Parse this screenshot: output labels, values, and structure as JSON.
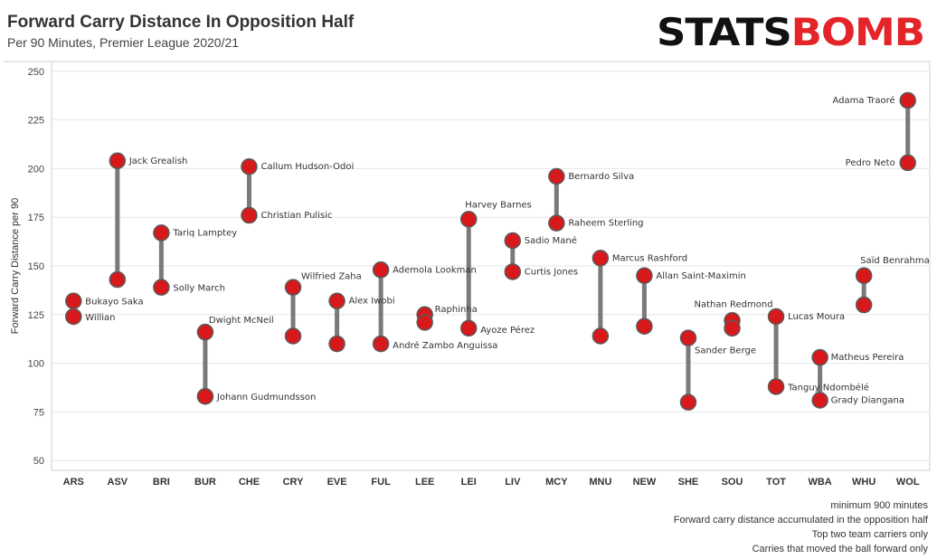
{
  "header": {
    "title": "Forward Carry Distance In Opposition Half",
    "subtitle": "Per 90 Minutes, Premier League 2020/21"
  },
  "logo": {
    "text": "STATSBOMB",
    "part1": "STATS",
    "part2": "B",
    "part3": "MB",
    "color_dark": "#111111",
    "color_red": "#e32428"
  },
  "notes": [
    "minimum 900 minutes",
    "Forward carry distance accumulated in the opposition half",
    "Top two team carriers only",
    "Carries that moved the ball forward only"
  ],
  "colors": {
    "point": "#d7191c",
    "point_stroke": "#5a5a5a",
    "line": "#7a7a7a",
    "grid": "#e6e6e6"
  },
  "chart_data": {
    "type": "dumbbell",
    "ylabel": "Forward Carry Distance per 90",
    "xlabel": "",
    "ylim": [
      45,
      255
    ],
    "yticks": [
      50,
      75,
      100,
      125,
      150,
      175,
      200,
      225,
      250
    ],
    "categories": [
      "ARS",
      "ASV",
      "BRI",
      "BUR",
      "CHE",
      "CRY",
      "EVE",
      "FUL",
      "LEE",
      "LEI",
      "LIV",
      "MCY",
      "MNU",
      "NEW",
      "SHE",
      "SOU",
      "TOT",
      "WBA",
      "WHU",
      "WOL"
    ],
    "teams": [
      {
        "team": "ARS",
        "players": [
          {
            "name": "Bukayo Saka",
            "value": 132
          },
          {
            "name": "Willian",
            "value": 124
          }
        ]
      },
      {
        "team": "ASV",
        "players": [
          {
            "name": "Jack Grealish",
            "value": 204
          },
          {
            "name": "",
            "value": 143
          }
        ]
      },
      {
        "team": "BRI",
        "players": [
          {
            "name": "Tariq Lamptey",
            "value": 167
          },
          {
            "name": "Solly March",
            "value": 139
          }
        ]
      },
      {
        "team": "BUR",
        "players": [
          {
            "name": "Dwight McNeil",
            "value": 116
          },
          {
            "name": "Johann Gudmundsson",
            "value": 83
          }
        ]
      },
      {
        "team": "CHE",
        "players": [
          {
            "name": "Callum Hudson-Odoi",
            "value": 201
          },
          {
            "name": "Christian Pulisic",
            "value": 176
          }
        ]
      },
      {
        "team": "CRY",
        "players": [
          {
            "name": "Wilfried Zaha",
            "value": 139
          },
          {
            "name": "",
            "value": 114
          }
        ]
      },
      {
        "team": "EVE",
        "players": [
          {
            "name": "Alex Iwobi",
            "value": 132
          },
          {
            "name": "",
            "value": 110
          }
        ]
      },
      {
        "team": "FUL",
        "players": [
          {
            "name": "Ademola Lookman",
            "value": 148
          },
          {
            "name": "André Zambo Anguissa",
            "value": 110
          }
        ]
      },
      {
        "team": "LEE",
        "players": [
          {
            "name": "Raphinha",
            "value": 125
          },
          {
            "name": "",
            "value": 121
          }
        ]
      },
      {
        "team": "LEI",
        "players": [
          {
            "name": "Harvey Barnes",
            "value": 174
          },
          {
            "name": "Ayoze Pérez",
            "value": 118
          }
        ]
      },
      {
        "team": "LIV",
        "players": [
          {
            "name": "Sadio Mané",
            "value": 163
          },
          {
            "name": "Curtis Jones",
            "value": 147
          }
        ]
      },
      {
        "team": "MCY",
        "players": [
          {
            "name": "Bernardo Silva",
            "value": 196
          },
          {
            "name": "Raheem Sterling",
            "value": 172
          }
        ]
      },
      {
        "team": "MNU",
        "players": [
          {
            "name": "Marcus Rashford",
            "value": 154
          },
          {
            "name": "",
            "value": 114
          }
        ]
      },
      {
        "team": "NEW",
        "players": [
          {
            "name": "Allan Saint-Maximin",
            "value": 145
          },
          {
            "name": "",
            "value": 119
          }
        ]
      },
      {
        "team": "SHE",
        "players": [
          {
            "name": "Sander Berge",
            "value": 113
          },
          {
            "name": "",
            "value": 80
          }
        ]
      },
      {
        "team": "SOU",
        "players": [
          {
            "name": "Nathan Redmond",
            "value": 122
          },
          {
            "name": "",
            "value": 118
          }
        ]
      },
      {
        "team": "TOT",
        "players": [
          {
            "name": "Lucas Moura",
            "value": 124
          },
          {
            "name": "Tanguy Ndombélé",
            "value": 88
          }
        ]
      },
      {
        "team": "WBA",
        "players": [
          {
            "name": "Matheus Pereira",
            "value": 103
          },
          {
            "name": "Grady Diangana",
            "value": 81
          }
        ]
      },
      {
        "team": "WHU",
        "players": [
          {
            "name": "Saïd Benrahma",
            "value": 145
          },
          {
            "name": "",
            "value": 130
          }
        ]
      },
      {
        "team": "WOL",
        "players": [
          {
            "name": "Adama Traoré",
            "value": 235
          },
          {
            "name": "Pedro Neto",
            "value": 203
          }
        ]
      }
    ]
  }
}
